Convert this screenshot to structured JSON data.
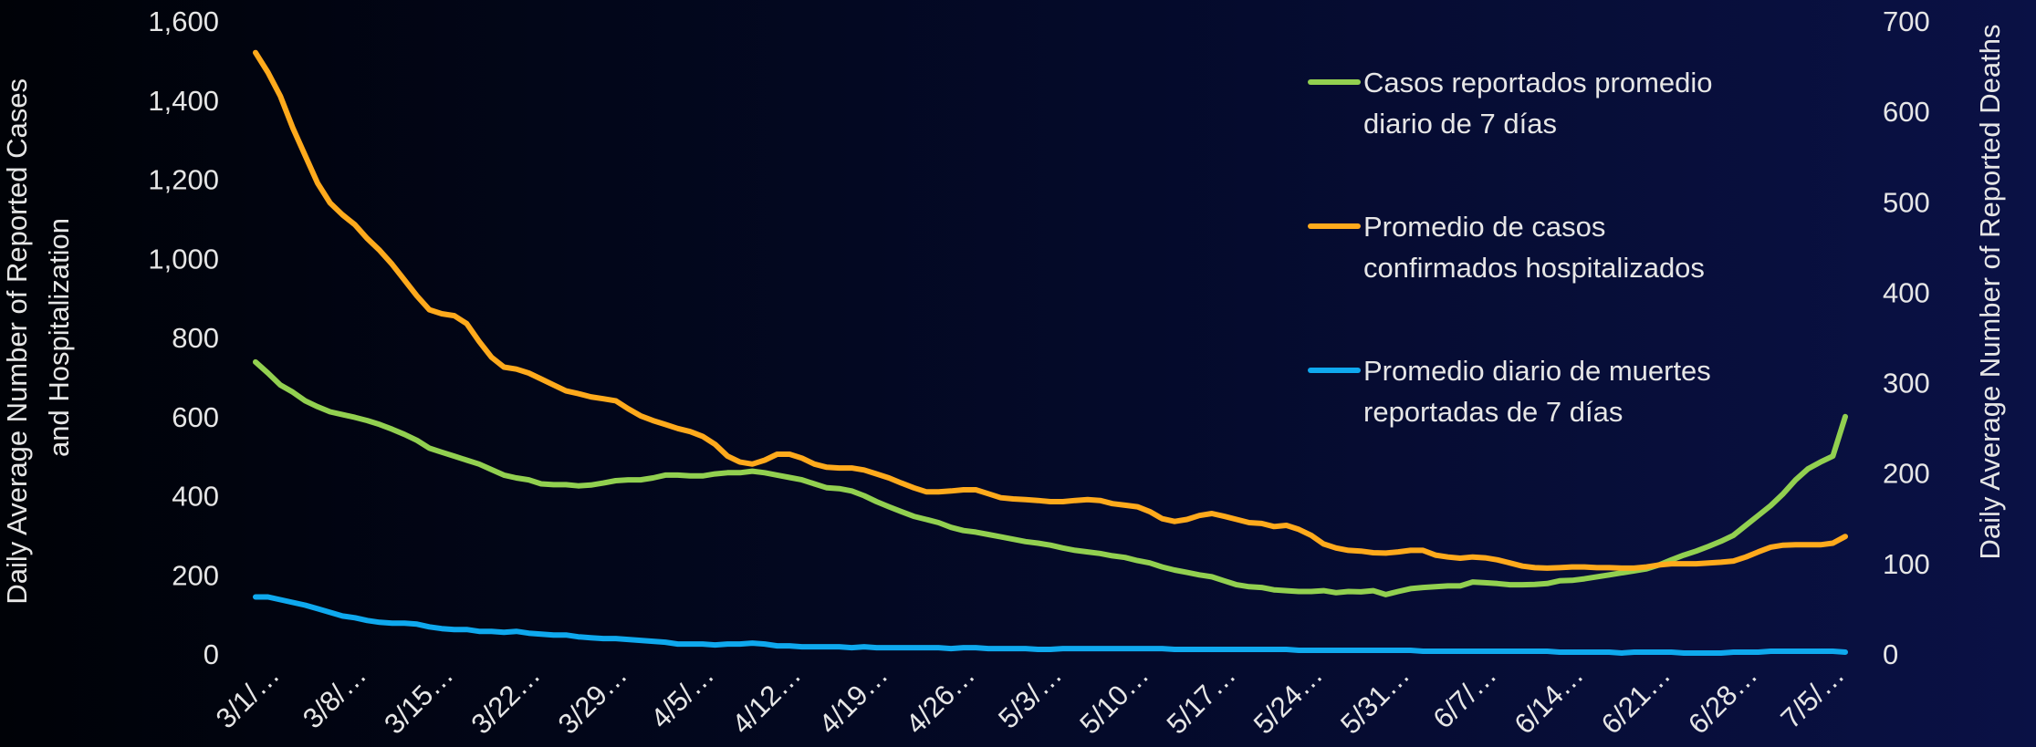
{
  "chart_data": {
    "type": "line",
    "y_label": "Daily Average Number of Reported Cases and Hospitalization",
    "y2_label": "Daily Average Number of Reported Deaths",
    "legend": "upper right",
    "categories": [
      "3/1/…",
      null,
      null,
      null,
      null,
      null,
      null,
      "3/8/…",
      null,
      null,
      null,
      null,
      null,
      null,
      "3/15…",
      null,
      null,
      null,
      null,
      null,
      null,
      "3/22…",
      null,
      null,
      null,
      null,
      null,
      null,
      "3/29…",
      null,
      null,
      null,
      null,
      null,
      null,
      "4/5/…",
      null,
      null,
      null,
      null,
      null,
      null,
      "4/12…",
      null,
      null,
      null,
      null,
      null,
      null,
      "4/19…",
      null,
      null,
      null,
      null,
      null,
      null,
      "4/26…",
      null,
      null,
      null,
      null,
      null,
      null,
      "5/3/…",
      null,
      null,
      null,
      null,
      null,
      null,
      "5/10…",
      null,
      null,
      null,
      null,
      null,
      null,
      "5/17…",
      null,
      null,
      null,
      null,
      null,
      null,
      "5/24…",
      null,
      null,
      null,
      null,
      null,
      null,
      "5/31…",
      null,
      null,
      null,
      null,
      null,
      null,
      "6/7/…",
      null,
      null,
      null,
      null,
      null,
      null,
      "6/14…",
      null,
      null,
      null,
      null,
      null,
      null,
      "6/21…",
      null,
      null,
      null,
      null,
      null,
      null,
      "6/28…",
      null,
      null,
      null,
      null,
      null,
      null,
      "7/5/…",
      null,
      null
    ],
    "series": [
      {
        "name": "Casos reportados promedio diario de 7 días",
        "color": "#92d050",
        "axis": "y",
        "values": [
          738,
          710,
          680,
          662,
          640,
          625,
          612,
          605,
          598,
          590,
          580,
          568,
          555,
          540,
          520,
          510,
          500,
          490,
          480,
          466,
          452,
          445,
          440,
          430,
          428,
          428,
          425,
          427,
          432,
          438,
          440,
          440,
          445,
          452,
          452,
          450,
          450,
          455,
          458,
          458,
          462,
          458,
          452,
          446,
          440,
          430,
          420,
          418,
          412,
          400,
          385,
          372,
          360,
          348,
          340,
          332,
          320,
          312,
          308,
          302,
          296,
          290,
          284,
          280,
          275,
          268,
          262,
          258,
          254,
          248,
          244,
          236,
          230,
          220,
          212,
          206,
          200,
          195,
          185,
          175,
          170,
          168,
          162,
          160,
          158,
          158,
          160,
          155,
          158,
          157,
          160,
          150,
          158,
          165,
          168,
          170,
          172,
          172,
          182,
          180,
          178,
          175,
          175,
          176,
          178,
          185,
          186,
          190,
          195,
          200,
          205,
          210,
          215,
          225,
          238,
          250,
          260,
          272,
          285,
          300,
          325,
          350,
          375,
          405,
          440,
          468,
          485,
          500,
          600
        ]
      },
      {
        "name": "Promedio de casos confirmados hospitalizados",
        "color": "#ffaa1c",
        "axis": "y",
        "values": [
          1520,
          1470,
          1410,
          1330,
          1260,
          1190,
          1140,
          1110,
          1085,
          1050,
          1020,
          985,
          945,
          905,
          870,
          860,
          855,
          835,
          790,
          750,
          725,
          720,
          710,
          695,
          680,
          665,
          658,
          650,
          645,
          640,
          620,
          602,
          590,
          580,
          570,
          562,
          550,
          530,
          500,
          485,
          480,
          490,
          505,
          505,
          495,
          480,
          472,
          470,
          470,
          465,
          455,
          445,
          432,
          420,
          410,
          410,
          412,
          415,
          415,
          405,
          395,
          392,
          390,
          388,
          385,
          385,
          388,
          390,
          388,
          380,
          376,
          372,
          360,
          342,
          335,
          340,
          350,
          355,
          348,
          340,
          332,
          330,
          322,
          325,
          315,
          300,
          278,
          268,
          262,
          260,
          256,
          255,
          258,
          262,
          262,
          250,
          245,
          242,
          245,
          243,
          238,
          230,
          222,
          218,
          217,
          218,
          220,
          220,
          218,
          218,
          217,
          217,
          220,
          225,
          228,
          228,
          228,
          230,
          232,
          235,
          245,
          258,
          270,
          275,
          276,
          276,
          276,
          280,
          297
        ]
      },
      {
        "name": "Promedio diario de muertes reportadas de 7 días",
        "color": "#0fa9ee",
        "axis": "y2",
        "values": [
          63,
          63,
          60,
          57,
          54,
          50,
          46,
          42,
          40,
          37,
          35,
          34,
          34,
          33,
          30,
          28,
          27,
          27,
          25,
          25,
          24,
          25,
          23,
          22,
          21,
          21,
          19,
          18,
          17,
          17,
          16,
          15,
          14,
          13,
          11,
          11,
          11,
          10,
          11,
          11,
          12,
          11,
          9,
          9,
          8,
          8,
          8,
          8,
          7,
          8,
          7,
          7,
          7,
          7,
          7,
          7,
          6,
          7,
          7,
          6,
          6,
          6,
          6,
          5,
          5,
          6,
          6,
          6,
          6,
          6,
          6,
          6,
          6,
          6,
          5,
          5,
          5,
          5,
          5,
          5,
          5,
          5,
          5,
          5,
          4,
          4,
          4,
          4,
          4,
          4,
          4,
          4,
          4,
          4,
          3,
          3,
          3,
          3,
          3,
          3,
          3,
          3,
          3,
          3,
          3,
          2,
          2,
          2,
          2,
          2,
          1,
          2,
          2,
          2,
          2,
          1,
          1,
          1,
          1,
          2,
          2,
          2,
          3,
          3,
          3,
          3,
          3,
          3,
          2
        ]
      }
    ],
    "ylim": [
      0,
      1600
    ],
    "yticks": [
      0,
      200,
      400,
      600,
      800,
      {
        "value": 1000,
        "label": "1,000"
      },
      {
        "value": 1200,
        "label": "1,200"
      },
      {
        "value": 1400,
        "label": "1,400"
      },
      {
        "value": 1600,
        "label": "1,600"
      }
    ],
    "y2lim": [
      0,
      700
    ],
    "y2ticks": [
      0,
      100,
      200,
      300,
      400,
      500,
      600,
      700
    ]
  }
}
